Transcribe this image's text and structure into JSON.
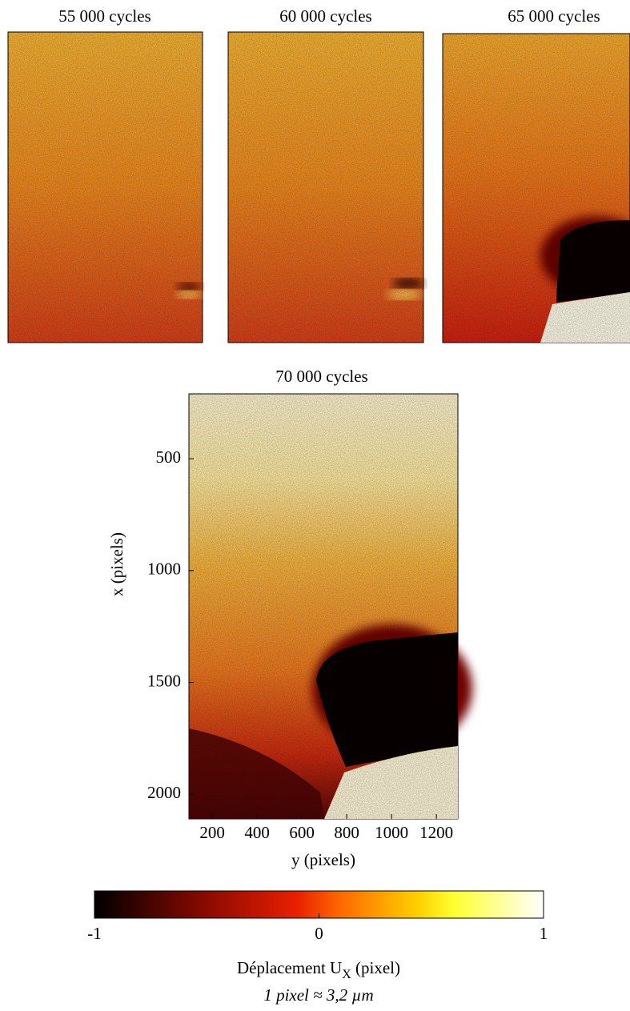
{
  "chart_data": [
    {
      "type": "heatmap",
      "title": "55 000 cycles"
    },
    {
      "type": "heatmap",
      "title": "60 000 cycles"
    },
    {
      "type": "heatmap",
      "title": "65 000 cycles"
    },
    {
      "type": "heatmap",
      "title": "70 000 cycles",
      "xlabel": "y (pixels)",
      "ylabel": "x (pixels)",
      "xlim": [
        96,
        1296
      ],
      "xticks": [
        200,
        400,
        600,
        800,
        1000,
        1200
      ],
      "ylim": [
        210,
        2110
      ],
      "yticks": [
        500,
        1000,
        1500,
        2000
      ],
      "y_inverted": true,
      "colorbar": {
        "label": "Déplacement U",
        "label_sub": "X",
        "label_suffix": " (pixel)",
        "note": "1 pixel ≈ 3,2 µm",
        "lim": [
          -1,
          1
        ],
        "ticks": [
          -1,
          0,
          1
        ]
      }
    }
  ]
}
